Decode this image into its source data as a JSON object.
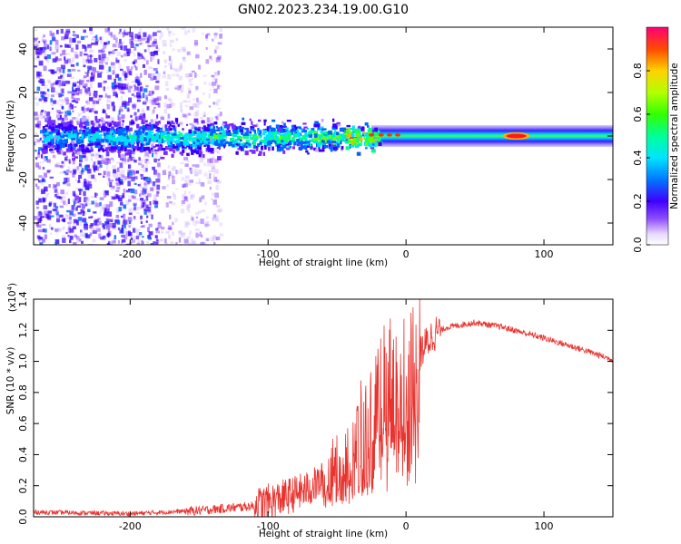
{
  "title": "GN02.2023.234.19.00.G10",
  "colors": {
    "snr_line": "#e8332e",
    "axis": "#000000"
  },
  "chart_data": [
    {
      "type": "heatmap",
      "name": "spectrogram",
      "xlabel": "Height of straight line (km)",
      "ylabel": "Frequency (Hz)",
      "xlim": [
        -270,
        150
      ],
      "ylim": [
        -50,
        50
      ],
      "x_ticks": [
        -200,
        -100,
        0,
        100
      ],
      "x_tick_labels": [
        "-200",
        "-100",
        "0",
        "100"
      ],
      "y_ticks": [
        -40,
        -20,
        0,
        20,
        40
      ],
      "y_tick_labels": [
        "-40",
        "-20",
        "0",
        "20",
        "40"
      ],
      "colorbar": {
        "label": "Normalized spectral amplitude",
        "range": [
          0,
          1
        ],
        "ticks": [
          0.0,
          0.2,
          0.4,
          0.6,
          0.8
        ],
        "tick_labels": [
          "0.0",
          "0.2",
          "0.4",
          "0.6",
          "0.8"
        ],
        "colormap": "rainbow"
      },
      "features": {
        "noise_region_end_km": -135,
        "dense_noise_end_km": -180,
        "band_center_hz": 0,
        "bright_blob_km": [
          70,
          90
        ],
        "bright_blob_amplitude": 1.0
      }
    },
    {
      "type": "line",
      "name": "snr",
      "xlabel": "Height of straight line (km)",
      "ylabel": "SNR (10 * v/v)",
      "scale_label": "(x10",
      "scale_exp": "4",
      "scale_close": ")",
      "xlim": [
        -270,
        150
      ],
      "ylim": [
        0,
        1.4
      ],
      "x_ticks": [
        -200,
        -100,
        0,
        100
      ],
      "x_tick_labels": [
        "-200",
        "-100",
        "0",
        "100"
      ],
      "y_ticks": [
        0.0,
        0.2,
        0.4,
        0.6,
        0.8,
        1.0,
        1.2,
        1.4
      ],
      "y_tick_labels": [
        "0.0",
        "0.2",
        "0.4",
        "0.6",
        "0.8",
        "1.0",
        "1.2",
        "1.4"
      ],
      "trend_points": [
        [
          -270,
          0.03
        ],
        [
          -200,
          0.02
        ],
        [
          -150,
          0.04
        ],
        [
          -110,
          0.07
        ],
        [
          -90,
          0.12
        ],
        [
          -70,
          0.18
        ],
        [
          -50,
          0.3
        ],
        [
          -30,
          0.5
        ],
        [
          -20,
          0.7
        ],
        [
          -10,
          0.85
        ],
        [
          0,
          0.9
        ],
        [
          10,
          1.05
        ],
        [
          20,
          1.18
        ],
        [
          30,
          1.22
        ],
        [
          50,
          1.25
        ],
        [
          70,
          1.22
        ],
        [
          100,
          1.15
        ],
        [
          130,
          1.07
        ],
        [
          150,
          1.01
        ]
      ]
    }
  ]
}
